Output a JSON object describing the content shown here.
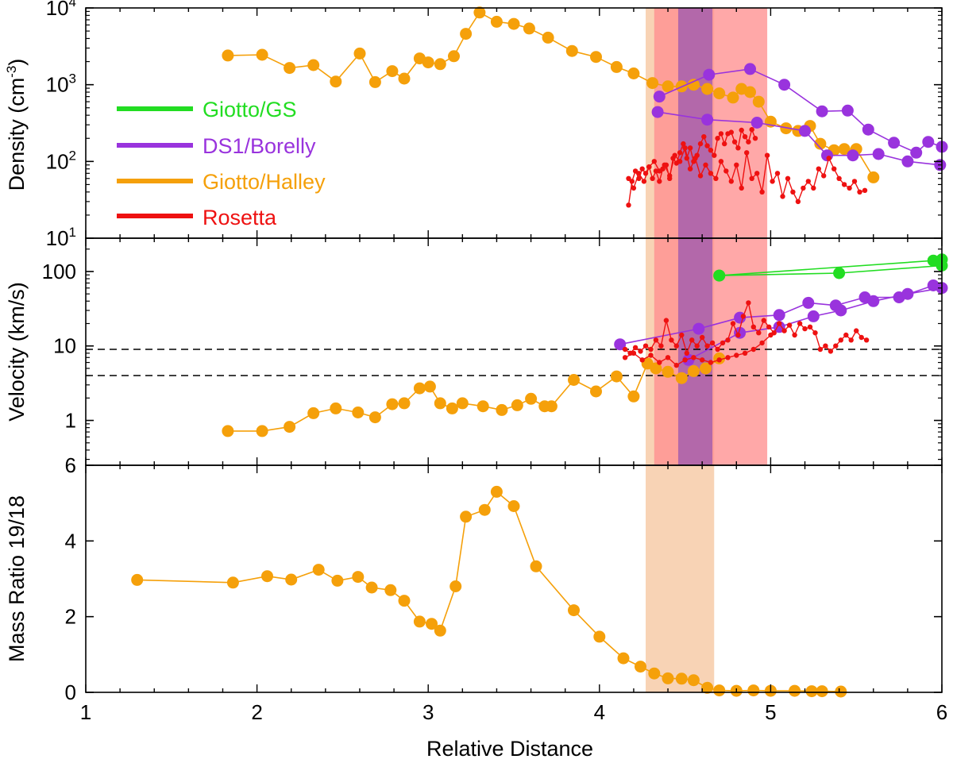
{
  "chart_data": {
    "type": "line",
    "x_axis": {
      "label": "Relative Distance",
      "range": [
        1,
        6
      ],
      "ticks": [
        "1",
        "2",
        "3",
        "4",
        "5",
        "6"
      ]
    },
    "colors": {
      "Giotto/GS": "#22dd22",
      "DS1/Borelly": "#9933dd",
      "Giotto/Halley": "#f5a00a",
      "Rosetta": "#ee1111"
    },
    "legend": [
      {
        "name": "Giotto/GS",
        "color": "#22dd22"
      },
      {
        "name": "DS1/Borelly",
        "color": "#9933dd"
      },
      {
        "name": "Giotto/Halley",
        "color": "#f5a00a"
      },
      {
        "name": "Rosetta",
        "color": "#ee1111"
      }
    ],
    "bands": [
      {
        "x": [
          4.27,
          4.67
        ],
        "color": "#f6c6a0",
        "panels": [
          0,
          1,
          2
        ]
      },
      {
        "x": [
          4.32,
          4.98
        ],
        "color": "#ff9090",
        "panels": [
          0,
          1
        ]
      },
      {
        "x": [
          4.46,
          4.66
        ],
        "color": "#9955b0",
        "panels": [
          0,
          1
        ]
      }
    ],
    "panels": [
      {
        "ylabel": "Density (cm",
        "ylabel_sup": "-3",
        "ylabel_end": ")",
        "yscale": "log",
        "ylim": [
          10,
          10000
        ],
        "ytick_values": [
          10,
          100,
          1000,
          10000
        ],
        "ytick_bases": [
          "10",
          "10",
          "10",
          "10"
        ],
        "ytick_exps": [
          "1",
          "2",
          "3",
          "4"
        ],
        "series": [
          {
            "name": "Giotto/Halley",
            "marker": "big",
            "x": [
              1.83,
              2.03,
              2.19,
              2.33,
              2.46,
              2.6,
              2.69,
              2.79,
              2.86,
              2.95,
              3.0,
              3.07,
              3.15,
              3.22,
              3.3,
              3.4,
              3.5,
              3.59,
              3.7,
              3.84,
              3.98,
              4.1,
              4.2,
              4.31,
              4.4,
              4.48,
              4.55,
              4.63,
              4.7,
              4.78,
              4.83,
              4.88,
              4.93,
              5.0,
              5.09,
              5.16,
              5.23,
              5.29,
              5.37,
              5.43,
              5.5,
              5.6
            ],
            "y": [
              2400,
              2450,
              1650,
              1800,
              1100,
              2550,
              1080,
              1500,
              1200,
              2200,
              1950,
              1850,
              2350,
              4600,
              8700,
              6600,
              6200,
              5400,
              4100,
              2750,
              2300,
              1700,
              1400,
              1050,
              950,
              950,
              1000,
              880,
              770,
              680,
              880,
              800,
              600,
              330,
              270,
              250,
              290,
              170,
              140,
              145,
              145,
              62
            ]
          },
          {
            "name": "DS1/Borelly",
            "marker": "big",
            "x": [
              4.35,
              4.64,
              4.88,
              5.08,
              5.3,
              5.45,
              5.57,
              5.72,
              5.85,
              5.92,
              6.0
            ],
            "y": [
              700,
              1350,
              1600,
              1000,
              450,
              460,
              260,
              175,
              130,
              180,
              155
            ]
          },
          {
            "name": "DS1/Borelly",
            "marker": "big",
            "x": [
              4.34,
              4.63,
              4.92,
              5.2,
              5.33,
              5.48,
              5.63,
              5.8,
              5.99
            ],
            "y": [
              440,
              350,
              320,
              250,
              120,
              120,
              125,
              100,
              90
            ]
          },
          {
            "name": "Rosetta",
            "marker": "small",
            "x": [
              4.17,
              4.19,
              4.21,
              4.23,
              4.25,
              4.27,
              4.29,
              4.31,
              4.33,
              4.35,
              4.37,
              4.39,
              4.41,
              4.43,
              4.45,
              4.47,
              4.49,
              4.51,
              4.53,
              4.55,
              4.57,
              4.59,
              4.61,
              4.63,
              4.65,
              4.67,
              4.69,
              4.71,
              4.73,
              4.75,
              4.77,
              4.79,
              4.81,
              4.83,
              4.85,
              4.87,
              4.89,
              4.91
            ],
            "y": [
              27,
              55,
              75,
              60,
              80,
              70,
              85,
              60,
              75,
              55,
              80,
              90,
              60,
              110,
              95,
              130,
              170,
              110,
              150,
              100,
              120,
              170,
              210,
              160,
              140,
              120,
              200,
              230,
              170,
              230,
              240,
              180,
              150,
              255,
              210,
              180,
              260,
              200
            ]
          },
          {
            "name": "Rosetta",
            "marker": "small",
            "x": [
              4.17,
              4.2,
              4.23,
              4.26,
              4.29,
              4.32,
              4.35,
              4.38,
              4.41,
              4.44,
              4.47,
              4.5,
              4.53,
              4.56,
              4.59,
              4.62,
              4.65,
              4.68,
              4.71,
              4.74,
              4.77,
              4.8,
              4.83,
              4.86,
              4.89,
              4.92,
              4.95,
              4.98,
              5.01,
              5.04,
              5.07,
              5.1,
              5.13,
              5.16,
              5.19,
              5.22,
              5.25,
              5.28,
              5.31,
              5.34,
              5.37,
              5.4,
              5.43,
              5.46,
              5.49,
              5.52,
              5.55
            ],
            "y": [
              60,
              45,
              70,
              55,
              85,
              100,
              75,
              90,
              65,
              120,
              100,
              150,
              80,
              110,
              65,
              90,
              70,
              60,
              100,
              75,
              55,
              90,
              45,
              130,
              60,
              70,
              40,
              120,
              55,
              70,
              35,
              60,
              40,
              30,
              45,
              55,
              45,
              80,
              65,
              110,
              80,
              60,
              50,
              45,
              55,
              40,
              42
            ]
          }
        ]
      },
      {
        "ylabel": "Velocity (km/s)",
        "yscale": "log",
        "ylim": [
          0.25,
          280
        ],
        "ytick_values": [
          1,
          10,
          100
        ],
        "ytick_labels": [
          "1",
          "10",
          "100"
        ],
        "hlines": [
          9,
          4
        ],
        "series": [
          {
            "name": "Giotto/Halley",
            "marker": "big",
            "x": [
              1.83,
              2.03,
              2.19,
              2.33,
              2.46,
              2.59,
              2.69,
              2.79,
              2.86,
              2.95,
              3.01,
              3.07,
              3.14,
              3.2,
              3.32,
              3.43,
              3.52,
              3.6,
              3.68,
              3.72,
              3.85,
              3.98,
              4.1,
              4.2,
              4.28,
              4.33,
              4.4,
              4.48,
              4.55,
              4.62,
              4.7
            ],
            "y": [
              0.72,
              0.72,
              0.82,
              1.25,
              1.45,
              1.28,
              1.1,
              1.65,
              1.7,
              2.7,
              2.85,
              1.7,
              1.45,
              1.7,
              1.55,
              1.38,
              1.6,
              1.95,
              1.55,
              1.55,
              3.5,
              2.45,
              3.9,
              2.1,
              5.8,
              5.0,
              4.5,
              3.7,
              4.6,
              5.0,
              6.8
            ]
          },
          {
            "name": "DS1/Borelly",
            "marker": "big",
            "x": [
              4.12,
              4.58,
              4.82,
              5.05,
              5.22,
              5.38,
              5.55,
              5.75,
              5.95
            ],
            "y": [
              10.5,
              17,
              24,
              26,
              38,
              35,
              45,
              45,
              65
            ]
          },
          {
            "name": "DS1/Borelly",
            "marker": "big",
            "x": [
              4.52,
              4.82,
              5.05,
              5.25,
              5.41,
              5.6,
              5.8,
              6.0
            ],
            "y": [
              6.5,
              15,
              18,
              25,
              30,
              40,
              50,
              60
            ]
          },
          {
            "name": "Giotto/GS",
            "marker": "big",
            "x": [
              4.7,
              5.95,
              6.0
            ],
            "y": [
              88,
              140,
              145
            ]
          },
          {
            "name": "Giotto/GS",
            "marker": "big",
            "x": [
              4.7,
              5.4,
              6.0
            ],
            "y": [
              88,
              95,
              120
            ]
          },
          {
            "name": "Rosetta",
            "marker": "small",
            "x": [
              4.15,
              4.18,
              4.21,
              4.24,
              4.27,
              4.3,
              4.33,
              4.36,
              4.39,
              4.42,
              4.45,
              4.48,
              4.51,
              4.54,
              4.57,
              4.6,
              4.63,
              4.66,
              4.69,
              4.72,
              4.75,
              4.78,
              4.81,
              4.84,
              4.87,
              4.9,
              4.93,
              4.96,
              4.99,
              5.02,
              5.05,
              5.08,
              5.11,
              5.14,
              5.17,
              5.2,
              5.23,
              5.26,
              5.29,
              5.32,
              5.35,
              5.38,
              5.41,
              5.44,
              5.47,
              5.5,
              5.53,
              5.56
            ],
            "y": [
              9,
              8,
              9.5,
              8.5,
              10,
              9,
              12,
              10,
              22,
              12,
              10,
              14,
              8,
              12,
              10,
              13,
              10,
              11,
              9,
              11,
              12,
              20,
              14,
              25,
              38,
              18,
              15,
              22,
              18,
              15,
              20,
              16,
              19,
              14,
              20,
              17,
              18,
              15,
              9,
              10,
              8.5,
              10,
              12,
              14,
              12,
              16,
              13,
              12
            ]
          },
          {
            "name": "Rosetta",
            "marker": "small",
            "x": [
              4.15,
              4.2,
              4.25,
              4.3,
              4.35,
              4.4,
              4.45,
              4.5,
              4.55,
              4.6,
              4.65,
              4.7,
              4.75,
              4.8,
              4.85,
              4.9,
              4.95,
              5.0
            ],
            "y": [
              7,
              8,
              6.5,
              7.5,
              6,
              7,
              5.5,
              6.5,
              7,
              6.5,
              6,
              6.5,
              7,
              7.5,
              8,
              9,
              11,
              14
            ]
          }
        ]
      },
      {
        "ylabel": "Mass Ratio 19/18",
        "yscale": "linear",
        "ylim": [
          0,
          6
        ],
        "ytick_values": [
          0,
          2,
          4,
          6
        ],
        "ytick_labels": [
          "0",
          "2",
          "4",
          "6"
        ],
        "series": [
          {
            "name": "Giotto/Halley",
            "marker": "big",
            "x": [
              1.3,
              1.86,
              2.06,
              2.2,
              2.36,
              2.47,
              2.59,
              2.67,
              2.78,
              2.86,
              2.95,
              3.02,
              3.07,
              3.16,
              3.22,
              3.33,
              3.4,
              3.5,
              3.63,
              3.85,
              4.0,
              4.14,
              4.24,
              4.32,
              4.4,
              4.48,
              4.55,
              4.63,
              4.7,
              4.8,
              4.9,
              5.0,
              5.14,
              5.24,
              5.3,
              5.41
            ],
            "y": [
              2.97,
              2.9,
              3.07,
              2.98,
              3.24,
              2.95,
              3.05,
              2.77,
              2.7,
              2.42,
              1.87,
              1.81,
              1.63,
              2.8,
              4.64,
              4.82,
              5.3,
              4.92,
              3.33,
              2.17,
              1.47,
              0.9,
              0.68,
              0.5,
              0.37,
              0.36,
              0.32,
              0.12,
              0.05,
              0.04,
              0.05,
              0.04,
              0.04,
              0.03,
              0.03,
              0.02
            ]
          }
        ]
      }
    ]
  }
}
